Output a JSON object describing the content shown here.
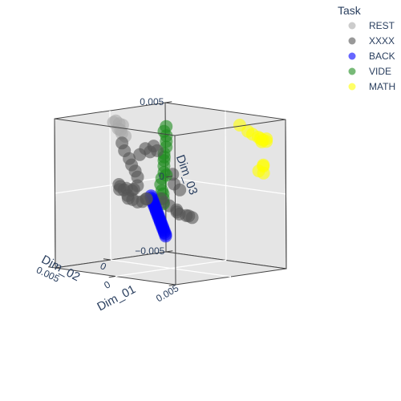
{
  "chart_data": {
    "type": "scatter",
    "subtype": "3d-scatter",
    "axes": {
      "x": {
        "title": "Dim_01",
        "ticks": [
          "0",
          "0.005"
        ]
      },
      "y": {
        "title": "Dim_02",
        "ticks": [
          "0",
          "0.005"
        ]
      },
      "z": {
        "title": "Dim_03",
        "ticks": [
          "−0.005",
          "0",
          "0.005"
        ]
      }
    },
    "legend": {
      "title": "Task",
      "placement": "top-right",
      "items": [
        {
          "label": "REST",
          "color": "#aaaaaa"
        },
        {
          "label": "XXXX",
          "color": "#555555"
        },
        {
          "label": "BACK",
          "color": "#0000ff"
        },
        {
          "label": "VIDE",
          "color": "#1e8c1e"
        },
        {
          "label": "MATH",
          "color": "#ffff00"
        }
      ]
    },
    "grid": true,
    "series": [
      {
        "name": "REST",
        "color": "#aaaaaa",
        "points": [
          [
            -0.0035,
            0.0011,
            0.0046
          ],
          [
            -0.0034,
            0.0009,
            0.0044
          ],
          [
            -0.0033,
            0.0011,
            0.0041
          ],
          [
            -0.0031,
            0.001,
            0.0038
          ],
          [
            -0.0033,
            0.0007,
            0.0043
          ],
          [
            -0.0036,
            0.0012,
            0.0045
          ],
          [
            -0.003,
            0.0008,
            0.0036
          ],
          [
            -0.0032,
            0.001,
            0.004
          ]
        ]
      },
      {
        "name": "XXXX",
        "color": "#555555",
        "points": [
          [
            -0.0029,
            0.0012,
            0.0032
          ],
          [
            -0.0027,
            0.0012,
            0.0027
          ],
          [
            -0.0024,
            0.0011,
            0.0022
          ],
          [
            -0.0022,
            0.0011,
            0.0018
          ],
          [
            -0.002,
            0.001,
            0.0014
          ],
          [
            -0.0019,
            0.0009,
            0.001
          ],
          [
            -0.002,
            0.0008,
            0.0004
          ],
          [
            -0.0024,
            0.0007,
            0.0001
          ],
          [
            -0.003,
            0.0007,
            0.0001
          ],
          [
            -0.0038,
            0.0004,
            0.0001
          ],
          [
            -0.004,
            0.0003,
            0.0002
          ],
          [
            -0.0035,
            0.0004,
            -0.0001
          ],
          [
            -0.003,
            0.0006,
            -0.0004
          ],
          [
            -0.0025,
            0.0007,
            -0.0006
          ],
          [
            -0.002,
            0.0008,
            -0.0007
          ],
          [
            -0.0015,
            0.0009,
            -0.0006
          ],
          [
            -0.0012,
            0.0009,
            -0.0004
          ],
          [
            -0.0016,
            0.0005,
            0.0029
          ],
          [
            -0.0013,
            0.0004,
            0.0027
          ],
          [
            -0.0011,
            0.0003,
            0.0031
          ],
          [
            -0.0009,
            0.0002,
            0.0028
          ],
          [
            -0.0018,
            0.0008,
            0.0025
          ],
          [
            0.0001,
            -0.0001,
            0.0013
          ],
          [
            0.0004,
            0.0001,
            0.0007
          ],
          [
            0.0006,
            -0.0002,
            0.0003
          ],
          [
            -0.0007,
            0.0001,
            -0.0004
          ],
          [
            -0.0004,
            0.0002,
            -0.0006
          ],
          [
            0.0,
            0.0001,
            -0.0008
          ],
          [
            0.0006,
            0.0001,
            -0.001
          ],
          [
            0.0008,
            0.0003,
            -0.0011
          ],
          [
            0.0011,
            0.0004,
            -0.0012
          ],
          [
            0.0014,
            0.0001,
            -0.0013
          ],
          [
            0.0016,
            0.0001,
            -0.0013
          ],
          [
            0.0018,
            0.0,
            -0.0014
          ],
          [
            -0.0026,
            0.001,
            -0.0005
          ],
          [
            -0.0021,
            0.0012,
            0.0001
          ],
          [
            -0.0034,
            0.0009,
            0.0
          ],
          [
            -0.0017,
            0.0003,
            -0.0005
          ]
        ]
      },
      {
        "name": "BACK",
        "color": "#0000ff",
        "points": [
          [
            -0.0006,
            0.0011,
            -0.0001
          ],
          [
            -0.0005,
            0.0012,
            -0.0002
          ],
          [
            -0.0004,
            0.0012,
            -0.0003
          ],
          [
            -0.0003,
            0.0013,
            -0.0004
          ],
          [
            -0.0002,
            0.0013,
            -0.0005
          ],
          [
            -0.0001,
            0.0014,
            -0.0006
          ],
          [
            0.0,
            0.0014,
            -0.0007
          ],
          [
            0.0001,
            0.0015,
            -0.0008
          ],
          [
            0.0002,
            0.0015,
            -0.0009
          ],
          [
            0.0003,
            0.0016,
            -0.001
          ],
          [
            0.0004,
            0.0016,
            -0.0011
          ],
          [
            0.0005,
            0.0017,
            -0.0012
          ],
          [
            0.0006,
            0.0017,
            -0.0013
          ],
          [
            0.0007,
            0.0018,
            -0.0014
          ],
          [
            0.0008,
            0.0018,
            -0.0015
          ],
          [
            0.0009,
            0.0019,
            -0.0016
          ],
          [
            0.001,
            0.0019,
            -0.0017
          ],
          [
            0.0011,
            0.002,
            -0.0018
          ],
          [
            0.0012,
            0.002,
            -0.0019
          ],
          [
            0.0013,
            0.0021,
            -0.002
          ],
          [
            0.0014,
            0.0021,
            -0.0021
          ],
          [
            0.0015,
            0.0022,
            -0.0022
          ],
          [
            0.0016,
            0.0022,
            -0.0023
          ],
          [
            0.0017,
            0.0023,
            -0.0024
          ]
        ]
      },
      {
        "name": "VIDE",
        "color": "#1e8c1e",
        "points": [
          [
            -0.0041,
            -0.0041,
            0.0036
          ],
          [
            -0.0041,
            -0.0039,
            0.0033
          ],
          [
            -0.004,
            -0.004,
            0.003
          ],
          [
            -0.0041,
            -0.0041,
            0.0026
          ],
          [
            -0.0042,
            -0.0042,
            0.0022
          ],
          [
            -0.0042,
            -0.004,
            0.0018
          ],
          [
            -0.0043,
            -0.0041,
            0.0013
          ],
          [
            -0.0044,
            -0.0042,
            0.0009
          ],
          [
            -0.0043,
            -0.0041,
            0.0005
          ],
          [
            -0.0044,
            -0.004,
            0.0001
          ],
          [
            -0.0044,
            -0.0039,
            -0.0003
          ],
          [
            -0.0043,
            -0.0039,
            -0.0007
          ],
          [
            -0.0041,
            -0.0038,
            -0.0012
          ],
          [
            -0.0039,
            -0.0036,
            -0.0015
          ],
          [
            -0.0042,
            -0.0039,
            -0.0009
          ],
          [
            -0.004,
            -0.0038,
            0.0016
          ],
          [
            -0.0043,
            -0.0043,
            0.0003
          ]
        ]
      },
      {
        "name": "MATH",
        "color": "#ffff00",
        "points": [
          [
            0.0034,
            -0.0026,
            0.0047
          ],
          [
            0.0038,
            -0.0029,
            0.0043
          ],
          [
            0.0042,
            -0.0034,
            0.0039
          ],
          [
            0.0043,
            -0.0035,
            0.0038
          ],
          [
            0.0044,
            -0.0036,
            0.0037
          ],
          [
            0.0045,
            -0.0038,
            0.0036
          ],
          [
            0.004,
            -0.0031,
            0.0041
          ],
          [
            0.0046,
            -0.0034,
            0.002
          ],
          [
            0.0047,
            -0.0033,
            0.0021
          ],
          [
            0.0045,
            -0.0031,
            0.0017
          ],
          [
            0.0049,
            -0.0031,
            0.0016
          ],
          [
            0.0046,
            -0.0037,
            0.0038
          ],
          [
            0.0044,
            -0.0035,
            0.0036
          ]
        ]
      }
    ]
  }
}
